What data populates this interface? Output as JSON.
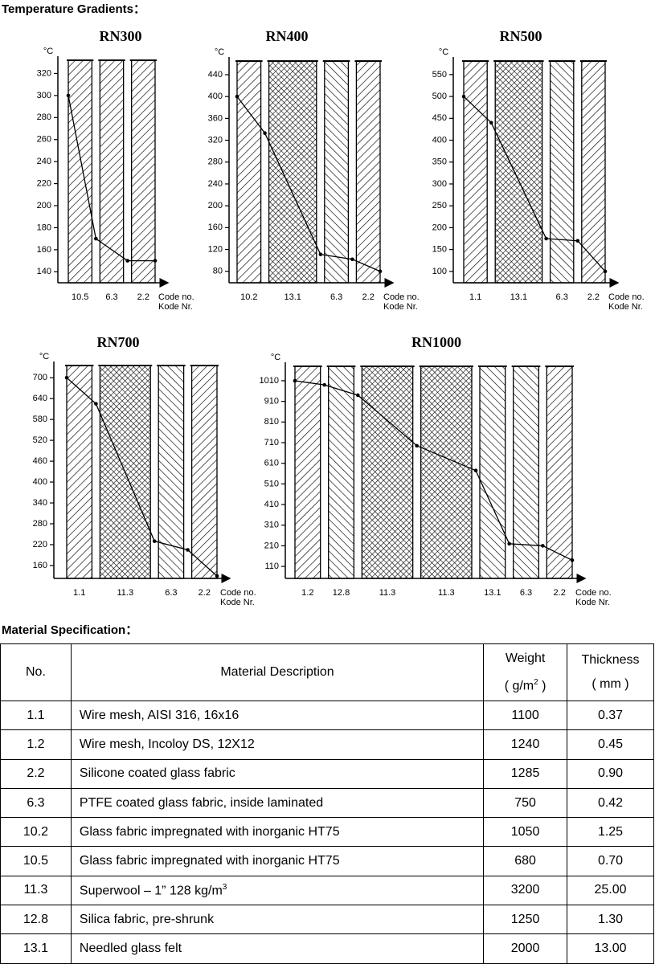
{
  "headings": {
    "gradients": "Temperature Gradients：",
    "specification": "Material Specification："
  },
  "chart_data": [
    {
      "type": "line",
      "title": "RN300",
      "y_unit": "°C",
      "ylim": [
        130,
        332
      ],
      "yticks": [
        140,
        160,
        180,
        200,
        220,
        240,
        260,
        280,
        300,
        320
      ],
      "layers": [
        {
          "code": "10.5",
          "pattern": "hatch"
        },
        {
          "code": "6.3",
          "pattern": "hatch"
        },
        {
          "code": "2.2",
          "pattern": "hatch"
        }
      ],
      "values": [
        300,
        170,
        150,
        150
      ],
      "x_label": {
        "code": "Code  no.",
        "kode": "Kode  Nr."
      }
    },
    {
      "type": "line",
      "title": "RN400",
      "y_unit": "°C",
      "ylim": [
        59,
        465
      ],
      "yticks": [
        80,
        120,
        160,
        200,
        240,
        280,
        320,
        360,
        400,
        440
      ],
      "layers": [
        {
          "code": "10.2",
          "pattern": "hatch"
        },
        {
          "code": "13.1",
          "pattern": "crosshatch"
        },
        {
          "code": "6.3",
          "pattern": "hatch-reverse"
        },
        {
          "code": "2.2",
          "pattern": "hatch"
        }
      ],
      "values": [
        400,
        333,
        111,
        102,
        80
      ],
      "x_label": {
        "code": "Code  no.",
        "kode": "Kode  Nr."
      }
    },
    {
      "type": "line",
      "title": "RN500",
      "y_unit": "°C",
      "ylim": [
        74,
        581
      ],
      "yticks": [
        100,
        150,
        200,
        250,
        300,
        350,
        400,
        450,
        500,
        550
      ],
      "layers": [
        {
          "code": "1.1",
          "pattern": "hatch"
        },
        {
          "code": "13.1",
          "pattern": "crosshatch"
        },
        {
          "code": "6.3",
          "pattern": "hatch-reverse"
        },
        {
          "code": "2.2",
          "pattern": "hatch"
        }
      ],
      "values": [
        500,
        440,
        175,
        170,
        100
      ],
      "x_label": {
        "code": "Code  no.",
        "kode": "Kode  Nr."
      }
    },
    {
      "type": "line",
      "title": "RN700",
      "y_unit": "°C",
      "ylim": [
        123,
        735
      ],
      "yticks": [
        160,
        220,
        280,
        340,
        400,
        460,
        520,
        580,
        640,
        700
      ],
      "layers": [
        {
          "code": "1.1",
          "pattern": "hatch"
        },
        {
          "code": "11.3",
          "pattern": "crosshatch"
        },
        {
          "code": "6.3",
          "pattern": "hatch-reverse"
        },
        {
          "code": "2.2",
          "pattern": "hatch"
        }
      ],
      "values": [
        700,
        625,
        230,
        205,
        130
      ],
      "x_label": {
        "code": "Code  no.",
        "kode": "Kode  Nr."
      }
    },
    {
      "type": "line",
      "title": "RN1000",
      "y_unit": "°C",
      "ylim": [
        52,
        1080
      ],
      "yticks": [
        110,
        210,
        310,
        410,
        510,
        610,
        710,
        810,
        910,
        1010
      ],
      "layers": [
        {
          "code": "1.2",
          "pattern": "hatch"
        },
        {
          "code": "12.8",
          "pattern": "hatch-reverse"
        },
        {
          "code": "11.3",
          "pattern": "crosshatch"
        },
        {
          "code": "11.3",
          "pattern": "crosshatch"
        },
        {
          "code": "13.1",
          "pattern": "hatch-reverse"
        },
        {
          "code": "6.3",
          "pattern": "hatch-reverse"
        },
        {
          "code": "2.2",
          "pattern": "hatch"
        }
      ],
      "values": [
        1010,
        990,
        940,
        695,
        575,
        220,
        210,
        140
      ],
      "x_label": {
        "code": "Code  no.",
        "kode": "Kode  Nr."
      }
    }
  ],
  "table": {
    "header": {
      "no": "No.",
      "description": "Material Description",
      "weight": {
        "label": "Weight",
        "unit": "( g/m",
        "unit_sup": "2",
        "unit_end": " )"
      },
      "thickness": {
        "label": "Thickness",
        "unit": "( mm )"
      }
    },
    "rows": [
      {
        "no": "1.1",
        "description": "Wire mesh, AISI 316, 16x16",
        "weight": "1100",
        "thickness": "0.37"
      },
      {
        "no": "1.2",
        "description": "Wire mesh, Incoloy DS, 12X12",
        "weight": "1240",
        "thickness": "0.45"
      },
      {
        "no": "2.2",
        "description": "Silicone coated glass fabric",
        "weight": "1285",
        "thickness": "0.90"
      },
      {
        "no": "6.3",
        "description": "PTFE coated glass fabric, inside laminated",
        "weight": "750",
        "thickness": "0.42"
      },
      {
        "no": "10.2",
        "description": "Glass fabric impregnated with inorganic HT75",
        "weight": "1050",
        "thickness": "1.25"
      },
      {
        "no": "10.5",
        "description": "Glass fabric impregnated with inorganic HT75",
        "weight": "680",
        "thickness": "0.70"
      },
      {
        "no": "11.3",
        "description": "Superwool – 1” 128 kg/m",
        "description_sup": "3",
        "weight": "3200",
        "thickness": "25.00"
      },
      {
        "no": "12.8",
        "description": "Silica fabric, pre-shrunk",
        "weight": "1250",
        "thickness": "1.30"
      },
      {
        "no": "13.1",
        "description": "Needled glass felt",
        "weight": "2000",
        "thickness": "13.00"
      }
    ]
  }
}
